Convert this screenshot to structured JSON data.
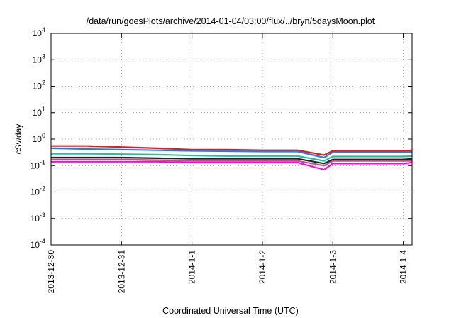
{
  "chart_data": {
    "type": "line",
    "title": "/data/run/goesPlots/archive/2014-01-04/03:00/flux/../bryn/5daysMoon.plot",
    "xlabel": "Coordinated Universal Time (UTC)",
    "ylabel": "cSv/day",
    "y_scale": "log",
    "ylim": [
      0.0001,
      10000
    ],
    "y_ticks": [
      {
        "base": "10",
        "exp": "-4",
        "value": 0.0001
      },
      {
        "base": "10",
        "exp": "-3",
        "value": 0.001
      },
      {
        "base": "10",
        "exp": "-2",
        "value": 0.01
      },
      {
        "base": "10",
        "exp": "-1",
        "value": 0.1
      },
      {
        "base": "10",
        "exp": "0",
        "value": 1
      },
      {
        "base": "10",
        "exp": "1",
        "value": 10
      },
      {
        "base": "10",
        "exp": "2",
        "value": 100
      },
      {
        "base": "10",
        "exp": "3",
        "value": 1000
      },
      {
        "base": "10",
        "exp": "4",
        "value": 10000
      }
    ],
    "xlim": [
      "2013-12-30",
      "2014-01-04 03:00"
    ],
    "x_ticks": [
      "2013-12-30",
      "2013-12-31",
      "2014-1-1",
      "2014-1-2",
      "2014-1-3",
      "2014-1-4"
    ],
    "grid": true,
    "series": [
      {
        "color": "#e41a1c",
        "x": [
          "2013-12-30 00:00",
          "2013-12-30 12:00",
          "2013-12-31 00:00",
          "2013-12-31 12:00",
          "2014-01-01 00:00",
          "2014-01-01 12:00",
          "2014-01-02 00:00",
          "2014-01-02 12:00",
          "2014-01-02 21:00",
          "2014-01-03 00:00",
          "2014-01-03 12:00",
          "2014-01-04 00:00",
          "2014-01-04 03:00"
        ],
        "values": [
          0.55,
          0.55,
          0.5,
          0.45,
          0.4,
          0.4,
          0.38,
          0.38,
          0.25,
          0.36,
          0.36,
          0.36,
          0.38
        ]
      },
      {
        "color": "#1e7fe6",
        "x": [
          "2013-12-30 00:00",
          "2013-12-30 12:00",
          "2013-12-31 00:00",
          "2013-12-31 12:00",
          "2014-01-01 00:00",
          "2014-01-01 12:00",
          "2014-01-02 00:00",
          "2014-01-02 12:00",
          "2014-01-02 21:00",
          "2014-01-03 00:00",
          "2014-01-03 12:00",
          "2014-01-04 00:00",
          "2014-01-04 03:00"
        ],
        "values": [
          0.45,
          0.42,
          0.4,
          0.38,
          0.36,
          0.35,
          0.34,
          0.34,
          0.2,
          0.32,
          0.32,
          0.32,
          0.33
        ]
      },
      {
        "color": "#20c0a0",
        "x": [
          "2013-12-30 00:00",
          "2013-12-30 12:00",
          "2013-12-31 00:00",
          "2013-12-31 12:00",
          "2014-01-01 00:00",
          "2014-01-01 12:00",
          "2014-01-02 00:00",
          "2014-01-02 12:00",
          "2014-01-02 21:00",
          "2014-01-03 00:00",
          "2014-01-03 12:00",
          "2014-01-04 00:00",
          "2014-01-04 03:00"
        ],
        "values": [
          0.28,
          0.28,
          0.27,
          0.26,
          0.24,
          0.23,
          0.23,
          0.23,
          0.15,
          0.22,
          0.22,
          0.22,
          0.23
        ]
      },
      {
        "color": "#222222",
        "x": [
          "2013-12-30 00:00",
          "2013-12-30 12:00",
          "2013-12-31 00:00",
          "2013-12-31 12:00",
          "2014-01-01 00:00",
          "2014-01-01 12:00",
          "2014-01-02 00:00",
          "2014-01-02 12:00",
          "2014-01-02 21:00",
          "2014-01-03 00:00",
          "2014-01-03 12:00",
          "2014-01-04 00:00",
          "2014-01-04 03:00"
        ],
        "values": [
          0.2,
          0.2,
          0.2,
          0.19,
          0.18,
          0.18,
          0.18,
          0.18,
          0.12,
          0.17,
          0.17,
          0.17,
          0.18
        ]
      },
      {
        "color": "#c0507a",
        "x": [
          "2013-12-30 00:00",
          "2013-12-30 12:00",
          "2013-12-31 00:00",
          "2013-12-31 12:00",
          "2014-01-01 00:00",
          "2014-01-01 12:00",
          "2014-01-02 00:00",
          "2014-01-02 12:00",
          "2014-01-02 21:00",
          "2014-01-03 00:00",
          "2014-01-03 12:00",
          "2014-01-04 00:00",
          "2014-01-04 03:00"
        ],
        "values": [
          0.17,
          0.17,
          0.17,
          0.16,
          0.15,
          0.15,
          0.15,
          0.15,
          0.1,
          0.15,
          0.15,
          0.15,
          0.15
        ]
      },
      {
        "color": "#ff00ff",
        "x": [
          "2013-12-30 00:00",
          "2013-12-30 12:00",
          "2013-12-31 00:00",
          "2013-12-31 12:00",
          "2014-01-01 00:00",
          "2014-01-01 12:00",
          "2014-01-02 00:00",
          "2014-01-02 12:00",
          "2014-01-02 21:00",
          "2014-01-03 00:00",
          "2014-01-03 12:00",
          "2014-01-04 00:00",
          "2014-01-04 03:00"
        ],
        "values": [
          0.14,
          0.14,
          0.14,
          0.14,
          0.13,
          0.13,
          0.13,
          0.13,
          0.07,
          0.12,
          0.12,
          0.12,
          0.13
        ]
      }
    ]
  }
}
